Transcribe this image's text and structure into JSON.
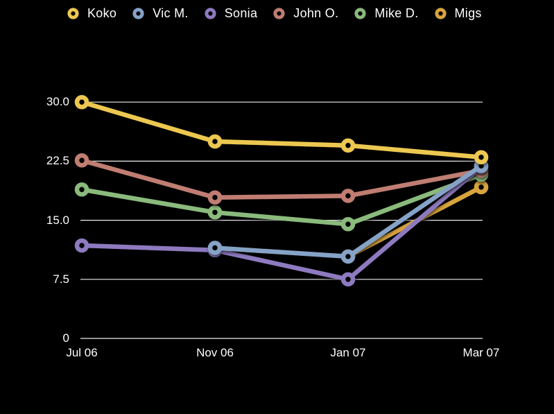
{
  "background_color": "#000000",
  "text_color": "#FFFFFF",
  "gridline_color": "#EDEDED",
  "chart_data": {
    "type": "line",
    "title": "",
    "xlabel": "",
    "ylabel": "",
    "categories": [
      "Jul 06",
      "Nov 06",
      "Jan 07",
      "Mar 07"
    ],
    "series": [
      {
        "name": "Koko",
        "color": "#EDC851",
        "values": [
          30,
          25,
          24.5,
          23
        ]
      },
      {
        "name": "Vic M.",
        "color": "#86A2C7",
        "values": [
          null,
          11.5,
          10.4,
          21.9
        ]
      },
      {
        "name": "Sonia",
        "color": "#8D7ABF",
        "values": [
          11.8,
          11.2,
          7.5,
          21.8
        ]
      },
      {
        "name": "John O.",
        "color": "#C07D72",
        "values": [
          22.6,
          17.9,
          18.1,
          21.3
        ]
      },
      {
        "name": "Mike D.",
        "color": "#8ABA7C",
        "values": [
          18.9,
          16,
          14.5,
          20.8
        ]
      },
      {
        "name": "Migs",
        "color": "#D8A43E",
        "values": [
          null,
          null,
          10.4,
          19.2
        ]
      }
    ],
    "y_ticks": [
      {
        "value": 0,
        "label": "0"
      },
      {
        "value": 7.5,
        "label": "7.5"
      },
      {
        "value": 15,
        "label": "15.0"
      },
      {
        "value": 22.5,
        "label": "22.5"
      },
      {
        "value": 30,
        "label": "30.0"
      }
    ],
    "ylim": [
      0,
      30
    ],
    "grid": true,
    "legend_position": "top",
    "marker_style": "ring"
  }
}
